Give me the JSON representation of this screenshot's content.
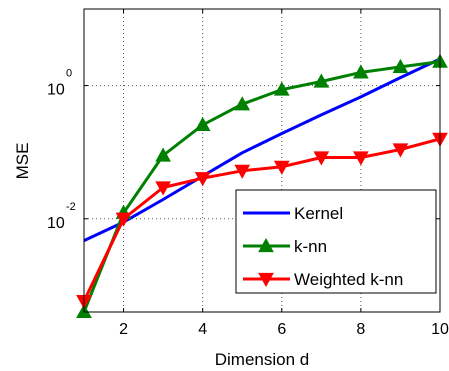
{
  "chart_data": {
    "type": "line",
    "xlabel": "Dimension d",
    "ylabel": "MSE",
    "xlim": [
      1,
      10
    ],
    "ylim_log10": [
      -3.4,
      1.15
    ],
    "y_scale": "log",
    "grid": true,
    "legend_position": "bottom-right",
    "x_ticks": [
      2,
      4,
      6,
      8,
      10
    ],
    "x_tick_labels": [
      "2",
      "4",
      "6",
      "8",
      "10"
    ],
    "y_ticks": [
      {
        "value": 1,
        "base": "10",
        "exponent": "0"
      },
      {
        "value": 0.01,
        "base": "10",
        "exponent": "-2"
      }
    ],
    "x": [
      1,
      2,
      3,
      4,
      5,
      6,
      7,
      8,
      9,
      10
    ],
    "series": [
      {
        "name": "Kernel",
        "color": "#0000ff",
        "marker": "none",
        "values": [
          0.0047,
          0.0089,
          0.0195,
          0.0437,
          0.0977,
          0.191,
          0.363,
          0.676,
          1.32,
          2.51
        ]
      },
      {
        "name": "k-nn",
        "color": "#008000",
        "marker": "triangle-up",
        "values": [
          0.0004,
          0.0123,
          0.0891,
          0.257,
          0.525,
          0.871,
          1.15,
          1.58,
          1.91,
          2.29
        ]
      },
      {
        "name": "Weighted k-nn",
        "color": "#ff0000",
        "marker": "triangle-down",
        "values": [
          0.00058,
          0.01,
          0.0295,
          0.0407,
          0.0525,
          0.0603,
          0.0832,
          0.0832,
          0.1096,
          0.1585
        ]
      }
    ]
  }
}
